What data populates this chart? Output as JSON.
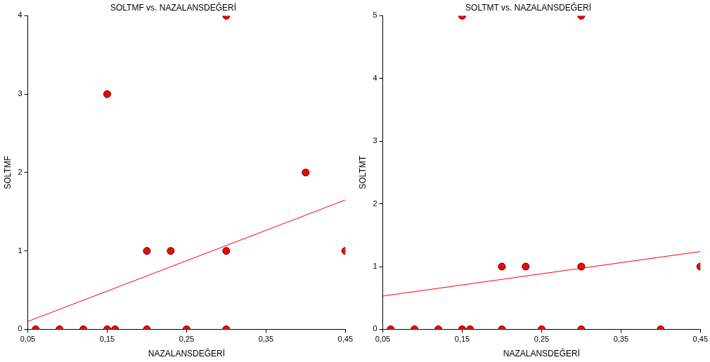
{
  "chart_data": [
    {
      "type": "scatter",
      "title": "SOLTMF vs. NAZALANSDEĞERİ",
      "xlabel": "NAZALANSDEĞERİ",
      "ylabel": "SOLTMF",
      "grid": false,
      "legend": false,
      "xlim": [
        0.05,
        0.45
      ],
      "ylim": [
        0,
        4
      ],
      "xticks": [
        {
          "value": 0.05,
          "label": "0,05"
        },
        {
          "value": 0.15,
          "label": "0,15"
        },
        {
          "value": 0.25,
          "label": "0,25"
        },
        {
          "value": 0.35,
          "label": "0,35"
        },
        {
          "value": 0.45,
          "label": "0,45"
        }
      ],
      "yticks": [
        0,
        1,
        2,
        3,
        4
      ],
      "series": [
        {
          "marker": "circle",
          "color": "#ff0000",
          "x": [
            0.06,
            0.09,
            0.12,
            0.15,
            0.16,
            0.2,
            0.25,
            0.3,
            0.15,
            0.3,
            0.4,
            0.2,
            0.23,
            0.3,
            0.45
          ],
          "values": [
            0,
            0,
            0,
            0,
            0,
            0,
            0,
            0,
            3,
            4,
            2,
            1,
            1,
            1,
            1
          ]
        },
        {
          "type": "line",
          "marker": "none",
          "color": "#ff0000",
          "x": [
            0.05,
            0.45
          ],
          "values": [
            0.1,
            1.65
          ]
        }
      ]
    },
    {
      "type": "scatter",
      "title": "SOLTMT vs. NAZALANSDEĞERİ",
      "xlabel": "NAZALANSDEĞERİ",
      "ylabel": "SOLTMT",
      "grid": false,
      "legend": false,
      "xlim": [
        0.05,
        0.45
      ],
      "ylim": [
        0,
        5
      ],
      "xticks": [
        {
          "value": 0.05,
          "label": "0,05"
        },
        {
          "value": 0.15,
          "label": "0,15"
        },
        {
          "value": 0.25,
          "label": "0,25"
        },
        {
          "value": 0.35,
          "label": "0,35"
        },
        {
          "value": 0.45,
          "label": "0,45"
        }
      ],
      "yticks": [
        0,
        1,
        2,
        3,
        4,
        5
      ],
      "series": [
        {
          "marker": "circle",
          "color": "#ff0000",
          "x": [
            0.06,
            0.09,
            0.12,
            0.15,
            0.16,
            0.2,
            0.25,
            0.3,
            0.4,
            0.15,
            0.3,
            0.2,
            0.23,
            0.3,
            0.45
          ],
          "values": [
            0,
            0,
            0,
            0,
            0,
            0,
            0,
            0,
            0,
            5,
            5,
            1,
            1,
            1,
            1
          ]
        },
        {
          "type": "line",
          "marker": "none",
          "color": "#ff0000",
          "x": [
            0.05,
            0.45
          ],
          "values": [
            0.53,
            1.24
          ]
        }
      ]
    }
  ]
}
